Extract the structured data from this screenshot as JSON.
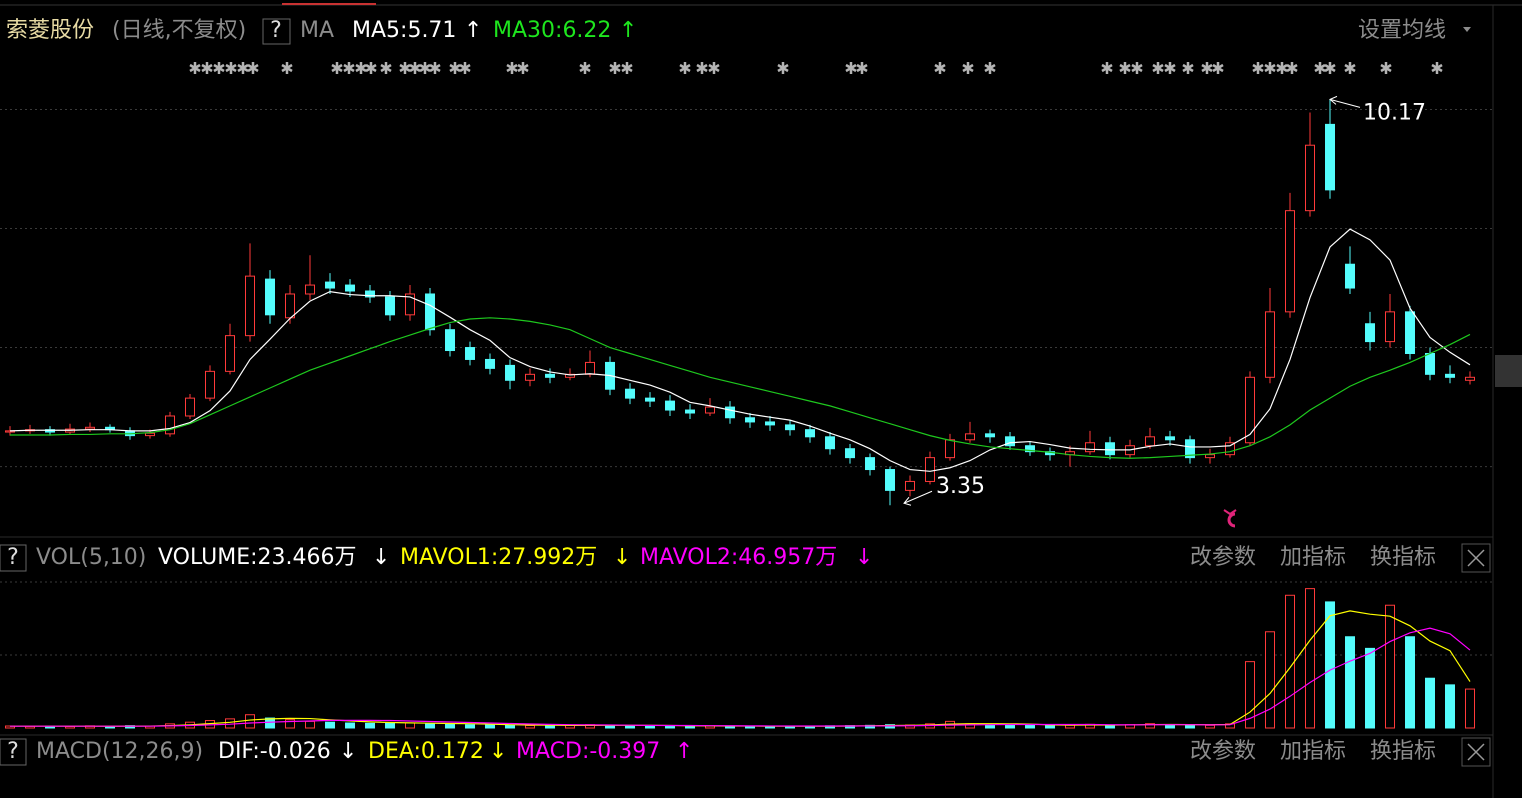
{
  "header": {
    "stock": "索菱股份",
    "period": "(日线,不复权)",
    "help": "?",
    "indicator": "MA",
    "ma5": "MA5:5.71",
    "ma5_arrow": "↑",
    "ma30": "MA30:6.22",
    "ma30_arrow": "↑",
    "settings": "设置均线"
  },
  "volume_header": {
    "help": "?",
    "indicator": "VOL(5,10)",
    "volume": "VOLUME:23.466万",
    "volume_arrow": "↓",
    "mavol1": "MAVOL1:27.992万",
    "mavol1_arrow": "↓",
    "mavol2": "MAVOL2:46.957万",
    "mavol2_arrow": "↓",
    "buttons": [
      "改参数",
      "加指标",
      "换指标"
    ]
  },
  "macd_header": {
    "help": "?",
    "indicator": "MACD(12,26,9)",
    "dif": "DIF:-0.026",
    "dif_arrow": "↓",
    "dea": "DEA:0.172",
    "dea_arrow": "↓",
    "macd": "MACD:-0.397",
    "macd_arrow": "↑",
    "buttons": [
      "改参数",
      "加指标",
      "换指标"
    ]
  },
  "chart_data": [
    {
      "type": "candlestick",
      "up_color": "#ff3a3a",
      "down_color": "#54fcfc",
      "ylim": [
        2.85,
        11.0
      ],
      "yticks": [
        4,
        6,
        8,
        10
      ],
      "grid": true,
      "open": [
        4.58,
        4.6,
        4.62,
        4.58,
        4.63,
        4.66,
        4.6,
        4.52,
        4.55,
        4.85,
        5.15,
        5.6,
        6.2,
        7.15,
        6.5,
        6.9,
        7.1,
        7.05,
        6.95,
        6.85,
        6.55,
        6.9,
        6.3,
        6.0,
        5.8,
        5.7,
        5.45,
        5.55,
        5.5,
        5.55,
        5.75,
        5.3,
        5.15,
        5.1,
        4.95,
        4.9,
        5.0,
        4.82,
        4.75,
        4.7,
        4.62,
        4.5,
        4.3,
        4.15,
        3.95,
        3.6,
        3.75,
        4.15,
        4.45,
        4.55,
        4.5,
        4.35,
        4.25,
        4.2,
        4.25,
        4.4,
        4.2,
        4.35,
        4.5,
        4.45,
        4.15,
        4.2,
        4.4,
        5.5,
        6.6,
        8.3,
        9.75,
        7.4,
        6.4,
        6.1,
        6.6,
        5.9,
        5.55,
        5.45
      ],
      "high": [
        4.68,
        4.7,
        4.68,
        4.72,
        4.74,
        4.71,
        4.66,
        4.62,
        4.92,
        5.22,
        5.7,
        6.4,
        7.75,
        7.3,
        7.05,
        7.55,
        7.25,
        7.15,
        7.05,
        6.95,
        7.05,
        7.0,
        6.4,
        6.1,
        5.9,
        5.8,
        5.65,
        5.65,
        5.65,
        5.95,
        5.85,
        5.4,
        5.25,
        5.2,
        5.05,
        5.15,
        5.1,
        4.9,
        4.85,
        4.78,
        4.7,
        4.58,
        4.38,
        4.22,
        4.0,
        3.85,
        4.25,
        4.55,
        4.75,
        4.62,
        4.58,
        4.42,
        4.32,
        4.35,
        4.6,
        4.5,
        4.45,
        4.65,
        4.6,
        4.52,
        4.3,
        4.5,
        5.6,
        7.0,
        8.6,
        9.95,
        10.17,
        7.7,
        6.6,
        6.9,
        6.7,
        6.0,
        5.7,
        5.6
      ],
      "low": [
        4.52,
        4.55,
        4.52,
        4.54,
        4.58,
        4.57,
        4.45,
        4.47,
        4.5,
        4.8,
        5.1,
        5.55,
        6.1,
        6.4,
        6.4,
        6.8,
        6.9,
        6.85,
        6.75,
        6.45,
        6.45,
        6.2,
        5.85,
        5.7,
        5.55,
        5.3,
        5.35,
        5.4,
        5.45,
        5.5,
        5.2,
        5.05,
        5.0,
        4.85,
        4.8,
        4.85,
        4.72,
        4.65,
        4.6,
        4.52,
        4.4,
        4.2,
        4.05,
        3.85,
        3.35,
        3.5,
        3.7,
        4.1,
        4.4,
        4.4,
        4.28,
        4.18,
        4.1,
        4.0,
        4.2,
        4.12,
        4.15,
        4.3,
        4.35,
        4.05,
        4.05,
        4.15,
        4.35,
        5.4,
        6.5,
        8.2,
        8.5,
        6.9,
        5.95,
        6.0,
        5.8,
        5.45,
        5.4,
        5.38
      ],
      "close": [
        4.6,
        4.62,
        4.58,
        4.63,
        4.66,
        4.62,
        4.52,
        4.56,
        4.85,
        5.15,
        5.6,
        6.2,
        7.2,
        6.55,
        6.9,
        7.05,
        7.0,
        6.95,
        6.85,
        6.55,
        6.9,
        6.3,
        5.95,
        5.8,
        5.65,
        5.45,
        5.55,
        5.5,
        5.55,
        5.75,
        5.3,
        5.15,
        5.1,
        4.95,
        4.9,
        5.0,
        4.82,
        4.75,
        4.7,
        4.62,
        4.5,
        4.3,
        4.15,
        3.95,
        3.6,
        3.75,
        4.15,
        4.45,
        4.55,
        4.5,
        4.35,
        4.25,
        4.2,
        4.25,
        4.4,
        4.2,
        4.35,
        4.5,
        4.45,
        4.15,
        4.2,
        4.4,
        5.5,
        6.6,
        8.3,
        9.4,
        8.65,
        7.0,
        6.1,
        6.6,
        5.9,
        5.55,
        5.5,
        5.5
      ],
      "series": [
        {
          "color": "#ffffff",
          "values": [
            4.6,
            4.61,
            4.61,
            4.61,
            4.62,
            4.62,
            4.6,
            4.6,
            4.64,
            4.74,
            4.94,
            5.27,
            5.8,
            6.14,
            6.49,
            6.78,
            6.94,
            6.89,
            6.87,
            6.87,
            6.85,
            6.71,
            6.51,
            6.3,
            6.12,
            5.83,
            5.68,
            5.59,
            5.54,
            5.56,
            5.53,
            5.45,
            5.37,
            5.25,
            5.08,
            5.02,
            4.95,
            4.88,
            4.83,
            4.78,
            4.68,
            4.56,
            4.45,
            4.3,
            4.1,
            3.95,
            3.92,
            3.98,
            4.1,
            4.28,
            4.4,
            4.42,
            4.37,
            4.31,
            4.29,
            4.28,
            4.28,
            4.34,
            4.38,
            4.33,
            4.33,
            4.35,
            4.54,
            4.97,
            5.8,
            6.84,
            7.69,
            7.99,
            7.81,
            7.47,
            6.66,
            6.17,
            5.92,
            5.71
          ]
        },
        {
          "color": "#1ec81e",
          "values": [
            4.53,
            4.53,
            4.53,
            4.54,
            4.54,
            4.55,
            4.55,
            4.57,
            4.62,
            4.72,
            4.87,
            5.02,
            5.17,
            5.32,
            5.47,
            5.62,
            5.74,
            5.86,
            5.98,
            6.1,
            6.21,
            6.32,
            6.42,
            6.48,
            6.5,
            6.48,
            6.44,
            6.38,
            6.3,
            6.15,
            6.0,
            5.9,
            5.8,
            5.7,
            5.6,
            5.5,
            5.42,
            5.34,
            5.26,
            5.18,
            5.1,
            5.02,
            4.92,
            4.82,
            4.72,
            4.62,
            4.52,
            4.44,
            4.38,
            4.33,
            4.3,
            4.27,
            4.24,
            4.2,
            4.17,
            4.15,
            4.14,
            4.15,
            4.17,
            4.19,
            4.21,
            4.25,
            4.35,
            4.5,
            4.7,
            4.95,
            5.15,
            5.35,
            5.5,
            5.62,
            5.75,
            5.9,
            6.05,
            6.22
          ]
        }
      ]
    },
    {
      "type": "bar",
      "ylim": [
        0,
        88
      ],
      "yticks": [
        44,
        88
      ],
      "grid": true,
      "values": [
        1.2,
        1.0,
        1.1,
        0.9,
        1.3,
        1.0,
        1.4,
        1.2,
        2.5,
        3.5,
        4.5,
        5.5,
        8.0,
        6.0,
        5.0,
        4.0,
        3.5,
        3.0,
        2.8,
        3.2,
        3.0,
        2.5,
        2.2,
        2.0,
        1.8,
        1.6,
        1.5,
        1.4,
        1.5,
        2.0,
        1.8,
        1.4,
        1.3,
        1.2,
        1.1,
        1.3,
        1.2,
        1.0,
        1.0,
        1.1,
        1.2,
        1.3,
        1.4,
        1.6,
        2.0,
        1.8,
        2.5,
        4.0,
        2.5,
        2.0,
        1.8,
        1.6,
        1.5,
        1.7,
        2.2,
        1.8,
        2.0,
        2.6,
        2.0,
        1.8,
        1.6,
        2.5,
        40,
        58,
        80,
        84,
        76,
        55,
        48,
        74,
        55,
        30,
        26,
        23.466
      ],
      "series": [
        {
          "color": "#ffff00",
          "values": [
            1.1,
            1.1,
            1.1,
            1.1,
            1.1,
            1.06,
            1.14,
            1.16,
            1.48,
            1.92,
            2.62,
            3.42,
            4.8,
            5.5,
            5.8,
            5.7,
            4.9,
            4.3,
            3.7,
            3.3,
            3.1,
            2.9,
            2.7,
            2.6,
            2.3,
            2.0,
            1.8,
            1.7,
            1.6,
            1.6,
            1.66,
            1.62,
            1.6,
            1.54,
            1.36,
            1.26,
            1.22,
            1.16,
            1.12,
            1.12,
            1.1,
            1.12,
            1.2,
            1.32,
            1.5,
            1.62,
            1.86,
            2.38,
            2.56,
            2.56,
            2.52,
            2.38,
            1.88,
            1.72,
            1.76,
            1.76,
            1.84,
            2.06,
            2.12,
            2.04,
            2.0,
            2.1,
            9.6,
            20.8,
            36.4,
            52.9,
            67.6,
            70.6,
            68.6,
            67.4,
            61.6,
            52.4,
            46.6,
            27.992
          ]
        },
        {
          "color": "#ff00ff",
          "values": [
            1.1,
            1.1,
            1.1,
            1.1,
            1.1,
            1.1,
            1.1,
            1.1,
            1.3,
            1.5,
            1.9,
            2.3,
            3.0,
            3.5,
            3.9,
            4.2,
            4.6,
            4.6,
            4.6,
            4.5,
            4.2,
            3.9,
            3.6,
            3.3,
            3.0,
            2.7,
            2.4,
            2.2,
            2.0,
            1.9,
            1.8,
            1.7,
            1.6,
            1.5,
            1.5,
            1.4,
            1.35,
            1.3,
            1.25,
            1.2,
            1.2,
            1.2,
            1.2,
            1.25,
            1.3,
            1.35,
            1.5,
            1.75,
            1.9,
            2.0,
            2.1,
            2.1,
            2.1,
            2.1,
            2.1,
            2.0,
            1.9,
            1.95,
            2.0,
            2.0,
            1.9,
            2.0,
            5.8,
            11.4,
            19.1,
            27.4,
            34.9,
            40.3,
            45.0,
            52.1,
            57.4,
            60.2,
            56.8,
            46.957
          ]
        }
      ]
    }
  ]
}
